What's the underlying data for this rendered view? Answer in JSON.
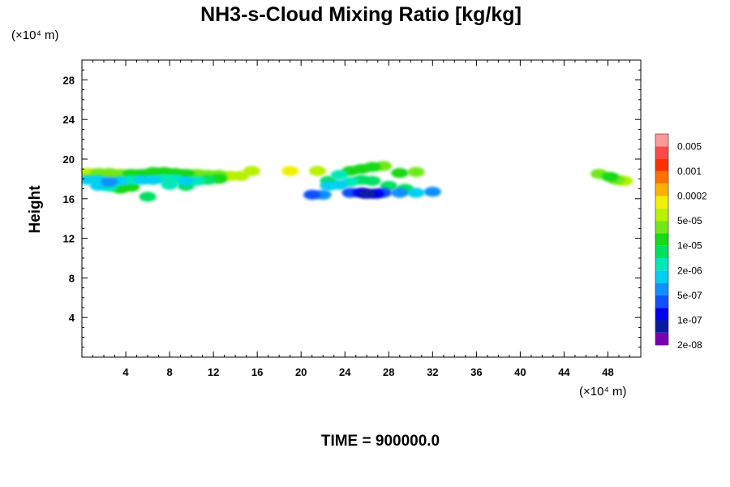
{
  "chart_data": {
    "type": "heatmap",
    "title": "NH3-s-Cloud Mixing Ratio [kg/kg]",
    "xlabel": "",
    "ylabel": "Height",
    "x_unit": "(×10⁴ m)",
    "y_unit": "(×10⁴ m)",
    "xlim": [
      0,
      51
    ],
    "ylim": [
      0,
      30
    ],
    "xticks": [
      4,
      8,
      12,
      16,
      20,
      24,
      28,
      32,
      36,
      40,
      44,
      48
    ],
    "yticks": [
      4,
      8,
      12,
      16,
      20,
      24,
      28
    ],
    "footer": "TIME = 900000.0",
    "colorbar": {
      "labels": [
        "0.005",
        "0.001",
        "0.0002",
        "5e-05",
        "1e-05",
        "2e-06",
        "5e-07",
        "1e-07",
        "2e-08"
      ],
      "colors_bottom_to_top": [
        "#7a00b4",
        "#0a1aa0",
        "#0000f0",
        "#1050ff",
        "#1090ff",
        "#00d0f0",
        "#00e8b8",
        "#00e060",
        "#18d818",
        "#70e818",
        "#b8f000",
        "#f0f000",
        "#ffb000",
        "#ff7000",
        "#ff3000",
        "#ff4a4a",
        "#ff9898"
      ]
    },
    "series": [
      {
        "cells": [
          [
            0.5,
            18.6,
            10
          ],
          [
            1.5,
            18.6,
            9
          ],
          [
            2.5,
            18.6,
            9
          ],
          [
            3.5,
            18.5,
            9
          ],
          [
            4.5,
            18.5,
            8
          ],
          [
            5.5,
            18.5,
            8
          ],
          [
            6.5,
            18.7,
            8
          ],
          [
            7.5,
            18.7,
            8
          ],
          [
            8.5,
            18.6,
            8
          ],
          [
            9.5,
            18.5,
            8
          ],
          [
            10.5,
            18.5,
            9
          ],
          [
            11.5,
            18.4,
            9
          ],
          [
            12.5,
            18.4,
            9
          ],
          [
            13.5,
            18.3,
            10
          ],
          [
            14.5,
            18.3,
            10
          ],
          [
            15.5,
            18.8,
            10
          ],
          [
            0.5,
            17.9,
            5
          ],
          [
            1.5,
            17.9,
            5
          ],
          [
            2.5,
            17.7,
            4
          ],
          [
            3.5,
            17.8,
            5
          ],
          [
            4.5,
            17.9,
            6
          ],
          [
            5.5,
            17.9,
            5
          ],
          [
            6.5,
            17.9,
            5
          ],
          [
            7.5,
            18.0,
            6
          ],
          [
            8.5,
            18.0,
            6
          ],
          [
            9.5,
            17.8,
            5
          ],
          [
            10.5,
            17.8,
            6
          ],
          [
            11.5,
            17.9,
            7
          ],
          [
            12.5,
            18.0,
            8
          ],
          [
            1.5,
            17.3,
            5
          ],
          [
            2.5,
            17.2,
            6
          ],
          [
            3.5,
            17.0,
            8
          ],
          [
            4.5,
            17.2,
            8
          ],
          [
            8.0,
            17.4,
            6
          ],
          [
            9.5,
            17.3,
            7
          ],
          [
            6.0,
            16.2,
            7
          ],
          [
            19.0,
            18.8,
            11
          ],
          [
            21.5,
            18.8,
            10
          ],
          [
            22.5,
            17.8,
            7
          ],
          [
            23.5,
            18.4,
            6
          ],
          [
            24.5,
            18.8,
            8
          ],
          [
            25.5,
            19.0,
            8
          ],
          [
            26.5,
            19.2,
            8
          ],
          [
            27.5,
            19.3,
            9
          ],
          [
            29.0,
            18.6,
            8
          ],
          [
            30.5,
            18.7,
            9
          ],
          [
            22.5,
            17.3,
            5
          ],
          [
            23.5,
            17.4,
            5
          ],
          [
            24.5,
            17.7,
            6
          ],
          [
            25.5,
            17.9,
            7
          ],
          [
            26.5,
            17.8,
            7
          ],
          [
            28.0,
            17.3,
            7
          ],
          [
            29.5,
            17.0,
            7
          ],
          [
            21.0,
            16.4,
            3
          ],
          [
            22.0,
            16.4,
            4
          ],
          [
            24.5,
            16.6,
            3
          ],
          [
            25.5,
            16.6,
            2
          ],
          [
            26.0,
            16.5,
            1
          ],
          [
            26.8,
            16.5,
            2
          ],
          [
            27.5,
            16.6,
            3
          ],
          [
            29.0,
            16.6,
            4
          ],
          [
            30.5,
            16.6,
            5
          ],
          [
            32.0,
            16.7,
            4
          ],
          [
            47.2,
            18.5,
            9
          ],
          [
            48.2,
            18.2,
            8
          ],
          [
            48.8,
            17.9,
            9
          ],
          [
            49.5,
            17.8,
            10
          ]
        ]
      }
    ]
  }
}
